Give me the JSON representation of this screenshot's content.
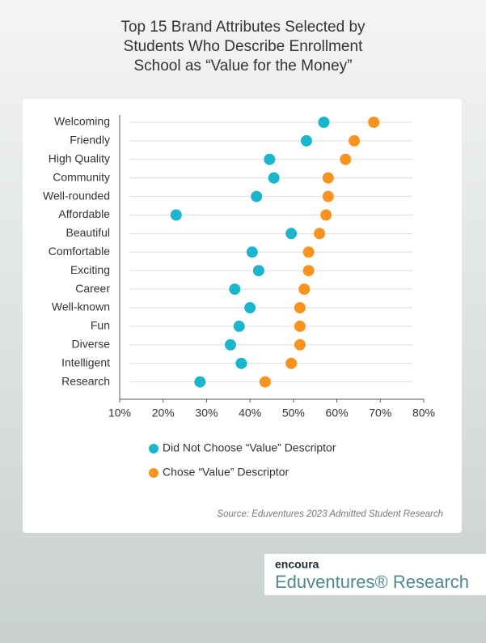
{
  "chart_data": {
    "type": "dot",
    "title": "Top 15 Brand Attributes Selected by Students Who Describe Enrollment School as “Value for the Money”",
    "categories": [
      "Welcoming",
      "Friendly",
      "High Quality",
      "Community",
      "Well-rounded",
      "Affordable",
      "Beautiful",
      "Comfortable",
      "Exciting",
      "Career",
      "Well-known",
      "Fun",
      "Diverse",
      "Intelligent",
      "Research"
    ],
    "series": [
      {
        "name": "Did Not Choose “Value” Descriptor",
        "color": "#1bb5cc",
        "values": [
          57,
          53,
          44.5,
          45.5,
          41.5,
          23,
          49.5,
          40.5,
          42,
          36.5,
          40,
          37.5,
          35.5,
          38,
          28.5
        ]
      },
      {
        "name": "Chose “Value” Descriptor",
        "color": "#f7931e",
        "values": [
          68.5,
          64,
          62,
          58,
          58,
          57.5,
          56,
          53.5,
          53.5,
          52.5,
          51.5,
          51.5,
          51.5,
          49.5,
          43.5
        ]
      }
    ],
    "xlim": [
      10,
      80
    ],
    "xticks": [
      {
        "value": 10,
        "label": "10%"
      },
      {
        "value": 20,
        "label": "20%"
      },
      {
        "value": 30,
        "label": "30%"
      },
      {
        "value": 40,
        "label": "40%"
      },
      {
        "value": 50,
        "label": "50%"
      },
      {
        "value": 60,
        "label": "60%"
      },
      {
        "value": 70,
        "label": "70%"
      },
      {
        "value": 80,
        "label": "80%"
      }
    ],
    "grid": true,
    "source": "Source: Eduventures 2023 Admitted Student Research"
  },
  "branding": {
    "logo": "encoura",
    "name": "Eduventures® Research"
  }
}
